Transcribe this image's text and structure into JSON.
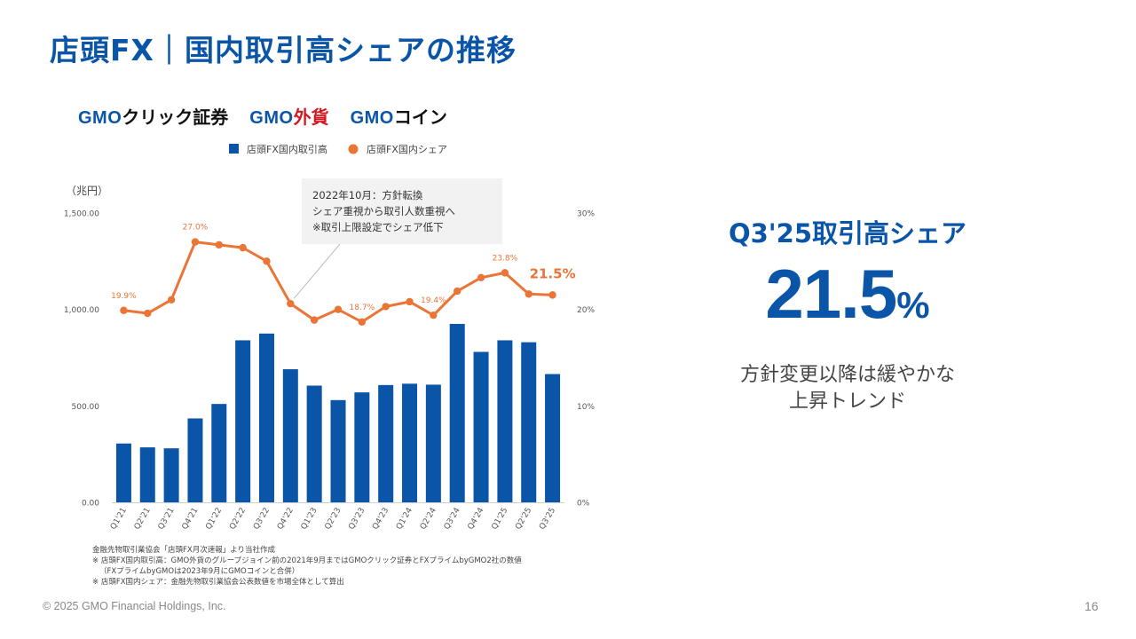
{
  "title": "店頭FX｜国内取引高シェアの推移",
  "logos": [
    {
      "prefix": "GMO",
      "name": "クリック証券"
    },
    {
      "prefix": "GMO",
      "name": "外貨"
    },
    {
      "prefix": "GMO",
      "name": "コイン"
    }
  ],
  "kpi": {
    "label": "Q3'25取引高シェア",
    "value": "21.5",
    "unit": "%",
    "desc_line1": "方針変更以降は緩やかな",
    "desc_line2": "上昇トレンド"
  },
  "annotation": {
    "line1": "2022年10月：方針転換",
    "line2": "シェア重視から取引人数重視へ",
    "line3": "※取引上限設定でシェア低下"
  },
  "notes": [
    "金融先物取引業協会「店頭FX月次速報」より当社作成",
    "※ 店頭FX国内取引高：GMO外貨のグループジョイン前の2021年9月まではGMOクリック証券とFXプライムbyGMO2社の数値",
    "（FXプライムbyGMOは2023年9月にGMOコインと合併）",
    "※ 店頭FX国内シェア：金融先物取引業協会公表数値を市場全体として算出"
  ],
  "footer": {
    "copyright": "© 2025 GMO Financial Holdings, Inc.",
    "page": "16"
  },
  "colors": {
    "bar": "#0a55a8",
    "line": "#ea7537",
    "accent": "#0a55a8"
  },
  "chart_data": {
    "type": "bar+line",
    "y_unit_label": "（兆円）",
    "categories": [
      "Q1'21",
      "Q2'21",
      "Q3'21",
      "Q4'21",
      "Q1'22",
      "Q2'22",
      "Q3'22",
      "Q4'22",
      "Q1'23",
      "Q2'23",
      "Q3'23",
      "Q4'23",
      "Q1'24",
      "Q2'24",
      "Q3'24",
      "Q4'24",
      "Q1'25",
      "Q2'25",
      "Q3'25"
    ],
    "series": [
      {
        "name": "店頭FX国内取引高",
        "type": "bar",
        "axis": "left",
        "values": [
          305,
          285,
          280,
          435,
          510,
          840,
          875,
          690,
          605,
          530,
          570,
          608,
          615,
          610,
          925,
          780,
          840,
          830,
          665
        ]
      },
      {
        "name": "店頭FX国内シェア",
        "type": "line",
        "axis": "right",
        "values": [
          19.9,
          19.6,
          21.0,
          27.0,
          26.7,
          26.4,
          25.0,
          20.6,
          18.9,
          20.0,
          18.7,
          20.3,
          20.8,
          19.4,
          21.9,
          23.3,
          23.8,
          21.6,
          21.5
        ],
        "labeled_points": [
          {
            "index": 0,
            "label": "19.9%"
          },
          {
            "index": 3,
            "label": "27.0%"
          },
          {
            "index": 10,
            "label": "18.7%"
          },
          {
            "index": 13,
            "label": "19.4%"
          },
          {
            "index": 16,
            "label": "23.8%"
          },
          {
            "index": 18,
            "label": "21.5%"
          }
        ]
      }
    ],
    "y_left": {
      "min": 0,
      "max": 1500,
      "ticks": [
        "0.00",
        "500.00",
        "1,000.00",
        "1,500.00"
      ],
      "tick_values": [
        0,
        500,
        1000,
        1500
      ]
    },
    "y_right": {
      "min": 0,
      "max": 30,
      "ticks": [
        "0%",
        "10%",
        "20%",
        "30%"
      ],
      "tick_values": [
        0,
        10,
        20,
        30
      ]
    },
    "legend_position": "top-center",
    "grid": false
  }
}
